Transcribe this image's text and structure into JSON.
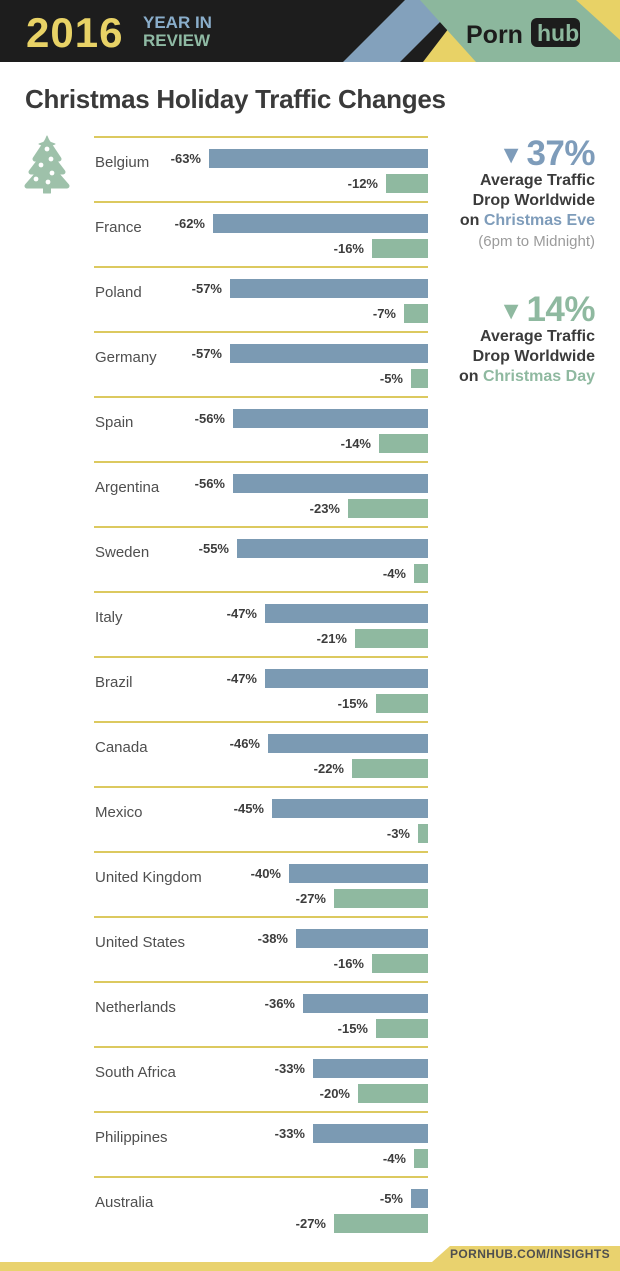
{
  "header": {
    "year": "2016",
    "tagline_line1": "YEAR IN",
    "tagline_line2": "REVIEW",
    "brand_part1": "Porn",
    "brand_part2": "hub"
  },
  "page_title": "Christmas Holiday Traffic Changes",
  "chart_data": {
    "type": "bar",
    "orientation": "horizontal",
    "title": "Christmas Holiday Traffic Changes",
    "unit": "percent traffic change",
    "bar_alignment": "right-edge",
    "xlim": [
      -70,
      0
    ],
    "grid": "row-separators-only",
    "categories": [
      "Belgium",
      "France",
      "Poland",
      "Germany",
      "Spain",
      "Argentina",
      "Sweden",
      "Italy",
      "Brazil",
      "Canada",
      "Mexico",
      "United Kingdom",
      "United States",
      "Netherlands",
      "South Africa",
      "Philippines",
      "Australia"
    ],
    "series": [
      {
        "name": "Christmas Eve",
        "color": "#7b9ab3",
        "values": [
          -63,
          -62,
          -57,
          -57,
          -56,
          -56,
          -55,
          -47,
          -47,
          -46,
          -45,
          -40,
          -38,
          -36,
          -33,
          -33,
          -5
        ]
      },
      {
        "name": "Christmas Day",
        "color": "#8fb9a0",
        "values": [
          -12,
          -16,
          -7,
          -5,
          -14,
          -23,
          -4,
          -21,
          -15,
          -22,
          -3,
          -27,
          -16,
          -15,
          -20,
          -4,
          -27
        ]
      }
    ],
    "value_label_format": "{value}%"
  },
  "stats": [
    {
      "arrow": "▼",
      "value": "37%",
      "line1": "Average Traffic",
      "line2": "Drop Worldwide",
      "prefix": "on ",
      "highlight": "Christmas Eve",
      "note": "(6pm to Midnight)",
      "color": "#7e9cba"
    },
    {
      "arrow": "▼",
      "value": "14%",
      "line1": "Average Traffic",
      "line2": "Drop Worldwide",
      "prefix": "on ",
      "highlight": "Christmas Day",
      "note": "",
      "color": "#8fb9a0"
    }
  ],
  "footer": {
    "link": "PORNHUB.COM/INSIGHTS"
  },
  "colors": {
    "header_bg": "#1d1d1d",
    "accent_yellow": "#e8d266",
    "accent_blue": "#8aaecb",
    "accent_green": "#8cb79d",
    "bar_eve_blue": "#7b9ab3",
    "bar_day_green": "#8fb9a0",
    "row_separator": "#dcc95f",
    "tree_green": "#9ec1aa",
    "footer_yellow": "#e9d26e"
  }
}
